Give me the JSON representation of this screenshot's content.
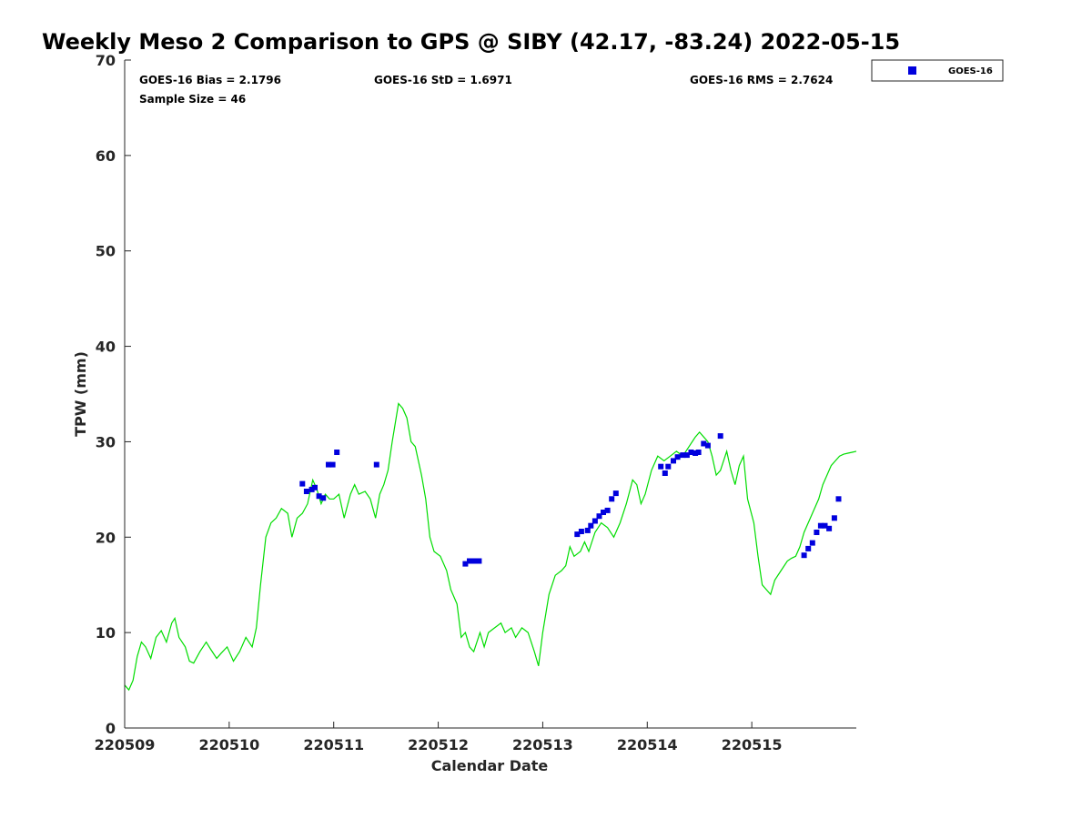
{
  "chart_data": {
    "type": "scatter",
    "title": "Weekly Meso 2 Comparison to GPS @ SIBY (42.17, -83.24) 2022-05-15",
    "xlabel": "Calendar Date",
    "ylabel": "TPW (mm)",
    "xlim": [
      "220509",
      "220516"
    ],
    "ylim": [
      0,
      70
    ],
    "x_tick_labels": [
      "220509",
      "220510",
      "220511",
      "220512",
      "220513",
      "220514",
      "220515"
    ],
    "y_tick_labels": [
      "0",
      "10",
      "20",
      "30",
      "40",
      "50",
      "60",
      "70"
    ],
    "grid": false,
    "legend_position": "top-right, outside plot",
    "stats": {
      "bias": "GOES-16 Bias = 2.1796",
      "std": "GOES-16 StD = 1.6971",
      "rms": "GOES-16 RMS = 2.7624",
      "sample_size": "Sample Size = 46"
    },
    "series": [
      {
        "name": "GOES-16",
        "style": "blue squares",
        "color": "#0000dd",
        "points": [
          [
            1.7,
            25.6
          ],
          [
            1.74,
            24.8
          ],
          [
            1.79,
            25.0
          ],
          [
            1.82,
            25.2
          ],
          [
            1.86,
            24.3
          ],
          [
            1.9,
            24.1
          ],
          [
            1.95,
            27.6
          ],
          [
            1.99,
            27.6
          ],
          [
            2.03,
            28.9
          ],
          [
            2.41,
            27.6
          ],
          [
            3.26,
            17.2
          ],
          [
            3.3,
            17.5
          ],
          [
            3.35,
            17.5
          ],
          [
            3.39,
            17.5
          ],
          [
            4.33,
            20.3
          ],
          [
            4.37,
            20.6
          ],
          [
            4.43,
            20.7
          ],
          [
            4.46,
            21.2
          ],
          [
            4.5,
            21.7
          ],
          [
            4.54,
            22.2
          ],
          [
            4.58,
            22.6
          ],
          [
            4.62,
            22.8
          ],
          [
            4.66,
            24.0
          ],
          [
            4.7,
            24.6
          ],
          [
            5.13,
            27.4
          ],
          [
            5.17,
            26.7
          ],
          [
            5.2,
            27.4
          ],
          [
            5.25,
            28.0
          ],
          [
            5.29,
            28.4
          ],
          [
            5.34,
            28.6
          ],
          [
            5.38,
            28.6
          ],
          [
            5.42,
            28.9
          ],
          [
            5.46,
            28.8
          ],
          [
            5.49,
            28.9
          ],
          [
            5.54,
            29.8
          ],
          [
            5.58,
            29.6
          ],
          [
            5.7,
            30.6
          ],
          [
            6.5,
            18.1
          ],
          [
            6.54,
            18.8
          ],
          [
            6.58,
            19.4
          ],
          [
            6.62,
            20.5
          ],
          [
            6.66,
            21.2
          ],
          [
            6.7,
            21.2
          ],
          [
            6.74,
            20.9
          ],
          [
            6.79,
            22.0
          ],
          [
            6.83,
            24.0
          ]
        ]
      },
      {
        "name": "GPS",
        "style": "green line",
        "color": "#00dd00",
        "points": [
          [
            0.0,
            4.5
          ],
          [
            0.04,
            4.0
          ],
          [
            0.08,
            5.0
          ],
          [
            0.12,
            7.5
          ],
          [
            0.16,
            9.0
          ],
          [
            0.2,
            8.5
          ],
          [
            0.25,
            7.3
          ],
          [
            0.3,
            9.5
          ],
          [
            0.35,
            10.2
          ],
          [
            0.4,
            9.0
          ],
          [
            0.45,
            11.0
          ],
          [
            0.48,
            11.5
          ],
          [
            0.52,
            9.5
          ],
          [
            0.58,
            8.5
          ],
          [
            0.62,
            7.0
          ],
          [
            0.66,
            6.8
          ],
          [
            0.72,
            8.0
          ],
          [
            0.78,
            9.0
          ],
          [
            0.82,
            8.3
          ],
          [
            0.88,
            7.3
          ],
          [
            0.92,
            7.8
          ],
          [
            0.98,
            8.5
          ],
          [
            1.04,
            7.0
          ],
          [
            1.1,
            8.0
          ],
          [
            1.16,
            9.5
          ],
          [
            1.22,
            8.5
          ],
          [
            1.26,
            10.5
          ],
          [
            1.3,
            15.0
          ],
          [
            1.35,
            20.0
          ],
          [
            1.4,
            21.5
          ],
          [
            1.45,
            22.0
          ],
          [
            1.5,
            23.0
          ],
          [
            1.56,
            22.5
          ],
          [
            1.6,
            20.0
          ],
          [
            1.65,
            22.0
          ],
          [
            1.7,
            22.5
          ],
          [
            1.75,
            23.5
          ],
          [
            1.8,
            26.0
          ],
          [
            1.84,
            25.0
          ],
          [
            1.88,
            23.5
          ],
          [
            1.92,
            24.5
          ],
          [
            1.96,
            24.0
          ],
          [
            2.0,
            24.0
          ],
          [
            2.05,
            24.5
          ],
          [
            2.1,
            22.0
          ],
          [
            2.16,
            24.5
          ],
          [
            2.2,
            25.5
          ],
          [
            2.24,
            24.5
          ],
          [
            2.3,
            24.8
          ],
          [
            2.35,
            24.0
          ],
          [
            2.4,
            22.0
          ],
          [
            2.44,
            24.5
          ],
          [
            2.48,
            25.5
          ],
          [
            2.52,
            27.0
          ],
          [
            2.56,
            30.0
          ],
          [
            2.62,
            34.0
          ],
          [
            2.66,
            33.5
          ],
          [
            2.7,
            32.5
          ],
          [
            2.74,
            30.0
          ],
          [
            2.78,
            29.5
          ],
          [
            2.84,
            26.5
          ],
          [
            2.88,
            24.0
          ],
          [
            2.92,
            20.0
          ],
          [
            2.96,
            18.5
          ],
          [
            3.02,
            18.0
          ],
          [
            3.08,
            16.5
          ],
          [
            3.12,
            14.5
          ],
          [
            3.18,
            13.0
          ],
          [
            3.22,
            9.5
          ],
          [
            3.26,
            10.0
          ],
          [
            3.3,
            8.5
          ],
          [
            3.34,
            8.0
          ],
          [
            3.4,
            10.0
          ],
          [
            3.44,
            8.5
          ],
          [
            3.48,
            10.0
          ],
          [
            3.54,
            10.5
          ],
          [
            3.6,
            11.0
          ],
          [
            3.64,
            10.0
          ],
          [
            3.7,
            10.5
          ],
          [
            3.74,
            9.5
          ],
          [
            3.8,
            10.5
          ],
          [
            3.86,
            10.0
          ],
          [
            3.92,
            8.0
          ],
          [
            3.96,
            6.5
          ],
          [
            4.0,
            10.0
          ],
          [
            4.06,
            14.0
          ],
          [
            4.12,
            16.0
          ],
          [
            4.18,
            16.5
          ],
          [
            4.22,
            17.0
          ],
          [
            4.26,
            19.0
          ],
          [
            4.3,
            18.0
          ],
          [
            4.36,
            18.5
          ],
          [
            4.4,
            19.5
          ],
          [
            4.44,
            18.5
          ],
          [
            4.5,
            20.5
          ],
          [
            4.56,
            21.5
          ],
          [
            4.62,
            21.0
          ],
          [
            4.68,
            20.0
          ],
          [
            4.74,
            21.5
          ],
          [
            4.8,
            23.5
          ],
          [
            4.86,
            26.0
          ],
          [
            4.9,
            25.5
          ],
          [
            4.94,
            23.5
          ],
          [
            4.98,
            24.5
          ],
          [
            5.04,
            27.0
          ],
          [
            5.1,
            28.5
          ],
          [
            5.16,
            28.0
          ],
          [
            5.22,
            28.5
          ],
          [
            5.28,
            29.0
          ],
          [
            5.34,
            28.5
          ],
          [
            5.4,
            29.5
          ],
          [
            5.46,
            30.5
          ],
          [
            5.5,
            31.0
          ],
          [
            5.54,
            30.5
          ],
          [
            5.58,
            30.0
          ],
          [
            5.62,
            28.5
          ],
          [
            5.66,
            26.5
          ],
          [
            5.7,
            27.0
          ],
          [
            5.76,
            29.0
          ],
          [
            5.8,
            27.0
          ],
          [
            5.84,
            25.5
          ],
          [
            5.88,
            27.5
          ],
          [
            5.92,
            28.5
          ],
          [
            5.96,
            24.0
          ],
          [
            6.02,
            21.5
          ],
          [
            6.06,
            18.0
          ],
          [
            6.1,
            15.0
          ],
          [
            6.14,
            14.5
          ],
          [
            6.18,
            14.0
          ],
          [
            6.22,
            15.5
          ],
          [
            6.28,
            16.5
          ],
          [
            6.34,
            17.5
          ],
          [
            6.38,
            17.8
          ],
          [
            6.42,
            18.0
          ],
          [
            6.46,
            19.0
          ],
          [
            6.5,
            20.5
          ],
          [
            6.56,
            22.0
          ],
          [
            6.6,
            23.0
          ],
          [
            6.64,
            24.0
          ],
          [
            6.68,
            25.5
          ],
          [
            6.72,
            26.5
          ],
          [
            6.76,
            27.5
          ],
          [
            6.8,
            28.0
          ],
          [
            6.84,
            28.5
          ],
          [
            6.88,
            28.7
          ],
          [
            6.92,
            28.8
          ],
          [
            6.96,
            28.9
          ],
          [
            7.0,
            29.0
          ]
        ]
      }
    ]
  }
}
